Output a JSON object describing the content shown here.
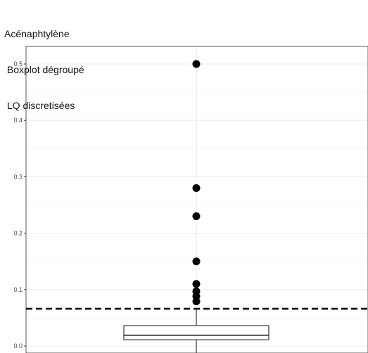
{
  "chart_data": {
    "type": "boxplot",
    "title_lines": [
      "Acénaphtylène",
      " Boxplot dégroupé",
      " LQ discretisées"
    ],
    "xlabel": "",
    "ylabel": "",
    "ylim": [
      -0.007,
      0.53
    ],
    "y_ticks": [
      0.0,
      0.1,
      0.2,
      0.3,
      0.4,
      0.5
    ],
    "y_tick_labels": [
      "0.0",
      "0.1",
      "0.2",
      "0.3",
      "0.4",
      "0.5"
    ],
    "grid": true,
    "box": {
      "q1": 0.011,
      "median": 0.019,
      "q3": 0.036,
      "whisker_low": 0.0,
      "whisker_high": 0.066
    },
    "outliers": [
      0.5,
      0.28,
      0.23,
      0.15,
      0.11,
      0.097,
      0.088,
      0.079
    ],
    "reference_line": {
      "y": 0.066,
      "style": "dashed"
    }
  }
}
